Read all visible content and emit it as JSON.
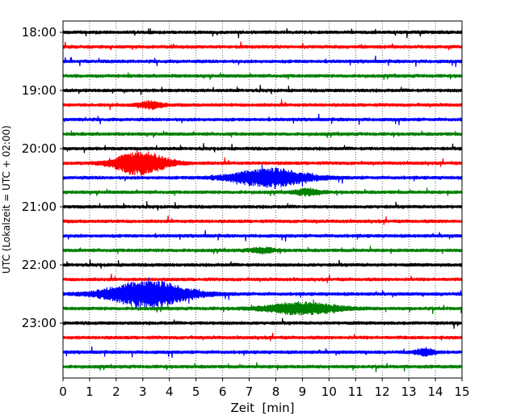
{
  "chart_data": {
    "type": "line",
    "subtype": "helicorder-seismogram",
    "title": "",
    "xlabel": "Zeit  [min]",
    "ylabel": "UTC (Lokalzeit = UTC + 02:00)",
    "xlim": [
      0,
      15
    ],
    "x_ticks": [
      0,
      1,
      2,
      3,
      4,
      5,
      6,
      7,
      8,
      9,
      10,
      11,
      12,
      13,
      14,
      15
    ],
    "x_tick_labels": [
      "0",
      "1",
      "2",
      "3",
      "4",
      "5",
      "6",
      "7",
      "8",
      "9",
      "10",
      "11",
      "12",
      "13",
      "14",
      "15"
    ],
    "vertical_grid": "dotted at each minute",
    "trace_interval_minutes": 15,
    "y_tick_labels": [
      "18:00",
      "19:00",
      "20:00",
      "21:00",
      "22:00",
      "23:00"
    ],
    "trace_colors": [
      "#000000",
      "#ff0000",
      "#0000ff",
      "#008000"
    ],
    "traces": [
      {
        "start": "18:00",
        "color": "#000000",
        "events": []
      },
      {
        "start": "18:15",
        "color": "#ff0000",
        "events": []
      },
      {
        "start": "18:30",
        "color": "#0000ff",
        "events": []
      },
      {
        "start": "18:45",
        "color": "#008000",
        "events": []
      },
      {
        "start": "19:00",
        "color": "#000000",
        "events": []
      },
      {
        "start": "19:15",
        "color": "#ff0000",
        "events": [
          {
            "t_min": 3.3,
            "amplitude": 0.3,
            "duration_min": 0.8
          }
        ]
      },
      {
        "start": "19:30",
        "color": "#0000ff",
        "events": []
      },
      {
        "start": "19:45",
        "color": "#008000",
        "events": []
      },
      {
        "start": "20:00",
        "color": "#000000",
        "events": []
      },
      {
        "start": "20:15",
        "color": "#ff0000",
        "events": [
          {
            "t_min": 2.9,
            "amplitude": 1.0,
            "duration_min": 1.7
          }
        ]
      },
      {
        "start": "20:30",
        "color": "#0000ff",
        "events": [
          {
            "t_min": 7.8,
            "amplitude": 0.75,
            "duration_min": 2.5
          }
        ]
      },
      {
        "start": "20:45",
        "color": "#008000",
        "events": [
          {
            "t_min": 9.2,
            "amplitude": 0.25,
            "duration_min": 0.8
          }
        ]
      },
      {
        "start": "21:00",
        "color": "#000000",
        "events": []
      },
      {
        "start": "21:15",
        "color": "#ff0000",
        "events": []
      },
      {
        "start": "21:30",
        "color": "#0000ff",
        "events": []
      },
      {
        "start": "21:45",
        "color": "#008000",
        "events": [
          {
            "t_min": 7.5,
            "amplitude": 0.2,
            "duration_min": 0.8
          }
        ]
      },
      {
        "start": "22:00",
        "color": "#000000",
        "events": []
      },
      {
        "start": "22:15",
        "color": "#ff0000",
        "events": []
      },
      {
        "start": "22:30",
        "color": "#0000ff",
        "events": [
          {
            "t_min": 3.2,
            "amplitude": 1.1,
            "duration_min": 2.7
          }
        ]
      },
      {
        "start": "22:45",
        "color": "#008000",
        "events": [
          {
            "t_min": 9.0,
            "amplitude": 0.5,
            "duration_min": 2.3
          }
        ]
      },
      {
        "start": "23:00",
        "color": "#000000",
        "events": []
      },
      {
        "start": "23:15",
        "color": "#ff0000",
        "events": []
      },
      {
        "start": "23:30",
        "color": "#0000ff",
        "events": [
          {
            "t_min": 13.6,
            "amplitude": 0.3,
            "duration_min": 0.6
          }
        ]
      },
      {
        "start": "23:45",
        "color": "#008000",
        "events": []
      }
    ]
  }
}
